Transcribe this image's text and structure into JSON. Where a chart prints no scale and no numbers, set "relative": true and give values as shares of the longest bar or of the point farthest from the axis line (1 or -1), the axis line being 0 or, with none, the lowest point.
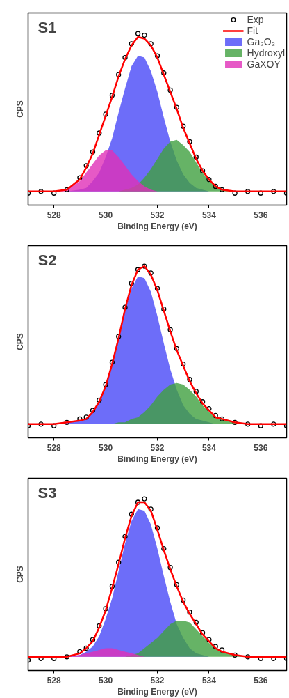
{
  "chart_data": [
    {
      "type": "area",
      "title": "S1",
      "xlabel": "Binding Energy (eV)",
      "ylabel": "CPS",
      "relative": true,
      "xlim": [
        527,
        537
      ],
      "xticks": [
        528,
        530,
        532,
        534,
        536
      ],
      "grid": false,
      "legend": "top right",
      "x": [
        527,
        527.5,
        528,
        528.5,
        529,
        529.25,
        529.5,
        529.75,
        530,
        530.25,
        530.5,
        530.75,
        531,
        531.25,
        531.5,
        531.75,
        532,
        532.25,
        532.5,
        532.75,
        533,
        533.25,
        533.5,
        533.75,
        534,
        534.25,
        534.5,
        535,
        535.5,
        536,
        536.5,
        537
      ],
      "series": [
        {
          "name": "Ga₂O₃",
          "color": "#4848f8",
          "values": [
            0.08,
            0.08,
            0.08,
            0.08,
            0.09,
            0.1,
            0.14,
            0.19,
            0.28,
            0.39,
            0.54,
            0.68,
            0.81,
            0.87,
            0.86,
            0.78,
            0.66,
            0.51,
            0.37,
            0.26,
            0.18,
            0.13,
            0.1,
            0.09,
            0.08,
            0.08,
            0.08,
            0.08,
            0.08,
            0.08,
            0.08,
            0.08
          ]
        },
        {
          "name": "Hydroxyl",
          "color": "#40a040",
          "values": [
            0.08,
            0.08,
            0.08,
            0.08,
            0.08,
            0.08,
            0.08,
            0.08,
            0.08,
            0.08,
            0.08,
            0.09,
            0.1,
            0.12,
            0.16,
            0.21,
            0.27,
            0.33,
            0.37,
            0.38,
            0.35,
            0.31,
            0.25,
            0.19,
            0.14,
            0.11,
            0.09,
            0.08,
            0.08,
            0.08,
            0.08,
            0.08
          ]
        },
        {
          "name": "GaXOY",
          "color": "#e030b8",
          "values": [
            0.08,
            0.08,
            0.08,
            0.09,
            0.14,
            0.19,
            0.24,
            0.29,
            0.32,
            0.32,
            0.28,
            0.23,
            0.18,
            0.14,
            0.11,
            0.09,
            0.08,
            0.08,
            0.08,
            0.08,
            0.08,
            0.08,
            0.08,
            0.08,
            0.08,
            0.08,
            0.08,
            0.08,
            0.08,
            0.08,
            0.08,
            0.08
          ]
        },
        {
          "name": "Exp",
          "type": "scatter",
          "color": "#000000",
          "marker": "circle",
          "values": [
            0.07,
            0.08,
            0.07,
            0.09,
            0.16,
            0.23,
            0.31,
            0.42,
            0.53,
            0.64,
            0.76,
            0.86,
            0.94,
            1.0,
            0.99,
            0.94,
            0.87,
            0.77,
            0.67,
            0.57,
            0.46,
            0.37,
            0.28,
            0.2,
            0.15,
            0.11,
            0.09,
            0.07,
            0.08,
            0.07,
            0.08,
            0.07
          ]
        },
        {
          "name": "Fit",
          "type": "line",
          "color": "#ff0000",
          "line_style": "solid",
          "values": [
            0.08,
            0.08,
            0.08,
            0.09,
            0.15,
            0.22,
            0.3,
            0.41,
            0.52,
            0.63,
            0.75,
            0.85,
            0.93,
            0.98,
            0.97,
            0.93,
            0.86,
            0.76,
            0.66,
            0.56,
            0.45,
            0.36,
            0.27,
            0.2,
            0.15,
            0.11,
            0.09,
            0.08,
            0.08,
            0.08,
            0.08,
            0.08
          ]
        }
      ]
    },
    {
      "type": "area",
      "title": "S2",
      "xlabel": "Binding Energy (eV)",
      "ylabel": "CPS",
      "relative": true,
      "xlim": [
        527,
        537
      ],
      "xticks": [
        528,
        530,
        532,
        534,
        536
      ],
      "grid": false,
      "x": [
        527,
        527.5,
        528,
        528.5,
        529,
        529.25,
        529.5,
        529.75,
        530,
        530.25,
        530.5,
        530.75,
        531,
        531.25,
        531.5,
        531.75,
        532,
        532.25,
        532.5,
        532.75,
        533,
        533.25,
        533.5,
        533.75,
        534,
        534.25,
        534.5,
        535,
        535.5,
        536,
        536.5,
        537
      ],
      "series": [
        {
          "color": "#4848f8",
          "values": [
            0.08,
            0.08,
            0.08,
            0.09,
            0.1,
            0.11,
            0.15,
            0.21,
            0.3,
            0.43,
            0.58,
            0.74,
            0.87,
            0.94,
            0.93,
            0.85,
            0.71,
            0.55,
            0.4,
            0.28,
            0.19,
            0.14,
            0.11,
            0.1,
            0.09,
            0.08,
            0.08,
            0.08,
            0.08,
            0.08,
            0.08,
            0.08
          ]
        },
        {
          "color": "#40a040",
          "values": [
            0.08,
            0.08,
            0.08,
            0.08,
            0.08,
            0.08,
            0.08,
            0.08,
            0.08,
            0.08,
            0.09,
            0.09,
            0.11,
            0.12,
            0.15,
            0.19,
            0.24,
            0.28,
            0.31,
            0.32,
            0.31,
            0.28,
            0.24,
            0.19,
            0.15,
            0.12,
            0.11,
            0.09,
            0.08,
            0.08,
            0.08,
            0.08
          ]
        },
        {
          "type": "scatter",
          "color": "#000000",
          "marker": "circle",
          "values": [
            0.07,
            0.08,
            0.07,
            0.09,
            0.11,
            0.12,
            0.16,
            0.22,
            0.31,
            0.44,
            0.59,
            0.76,
            0.9,
            0.98,
            1.0,
            0.96,
            0.87,
            0.75,
            0.63,
            0.52,
            0.43,
            0.34,
            0.27,
            0.21,
            0.17,
            0.13,
            0.11,
            0.09,
            0.08,
            0.07,
            0.08,
            0.07
          ]
        },
        {
          "type": "line",
          "color": "#ff0000",
          "line_style": "solid",
          "values": [
            0.08,
            0.08,
            0.08,
            0.09,
            0.1,
            0.11,
            0.15,
            0.21,
            0.3,
            0.43,
            0.58,
            0.75,
            0.89,
            0.98,
            1.0,
            0.95,
            0.86,
            0.74,
            0.62,
            0.51,
            0.42,
            0.33,
            0.26,
            0.2,
            0.16,
            0.12,
            0.11,
            0.09,
            0.08,
            0.08,
            0.08,
            0.08
          ]
        }
      ]
    },
    {
      "type": "area",
      "title": "S3",
      "xlabel": "Binding Energy (eV)",
      "ylabel": "CPS",
      "relative": true,
      "xlim": [
        527,
        537
      ],
      "xticks": [
        528,
        530,
        532,
        534,
        536
      ],
      "grid": false,
      "x": [
        527,
        527.5,
        528,
        528.5,
        529,
        529.25,
        529.5,
        529.75,
        530,
        530.25,
        530.5,
        530.75,
        531,
        531.25,
        531.5,
        531.75,
        532,
        532.25,
        532.5,
        532.75,
        533,
        533.25,
        533.5,
        533.75,
        534,
        534.25,
        534.5,
        535,
        535.5,
        536,
        536.5,
        537
      ],
      "series": [
        {
          "color": "#4848f8",
          "values": [
            0.08,
            0.08,
            0.08,
            0.08,
            0.09,
            0.11,
            0.14,
            0.2,
            0.3,
            0.42,
            0.58,
            0.74,
            0.87,
            0.94,
            0.93,
            0.85,
            0.71,
            0.55,
            0.4,
            0.27,
            0.19,
            0.13,
            0.1,
            0.09,
            0.08,
            0.08,
            0.08,
            0.08,
            0.08,
            0.08,
            0.08,
            0.08
          ]
        },
        {
          "color": "#40a040",
          "values": [
            0.08,
            0.08,
            0.08,
            0.08,
            0.08,
            0.08,
            0.08,
            0.08,
            0.08,
            0.08,
            0.08,
            0.08,
            0.09,
            0.1,
            0.13,
            0.16,
            0.19,
            0.23,
            0.27,
            0.29,
            0.29,
            0.28,
            0.24,
            0.2,
            0.16,
            0.13,
            0.11,
            0.09,
            0.08,
            0.08,
            0.08,
            0.08
          ]
        },
        {
          "color": "#e030b8",
          "values": [
            0.08,
            0.08,
            0.08,
            0.08,
            0.09,
            0.1,
            0.11,
            0.12,
            0.13,
            0.13,
            0.12,
            0.11,
            0.1,
            0.09,
            0.08,
            0.08,
            0.08,
            0.08,
            0.08,
            0.08,
            0.08,
            0.08,
            0.08,
            0.08,
            0.08,
            0.08,
            0.08,
            0.08,
            0.08,
            0.08,
            0.08,
            0.08
          ]
        },
        {
          "type": "scatter",
          "color": "#000000",
          "marker": "circle",
          "values": [
            0.06,
            0.07,
            0.07,
            0.08,
            0.11,
            0.13,
            0.18,
            0.26,
            0.36,
            0.49,
            0.63,
            0.78,
            0.91,
            0.98,
            1.0,
            0.94,
            0.83,
            0.71,
            0.6,
            0.5,
            0.41,
            0.34,
            0.28,
            0.22,
            0.18,
            0.14,
            0.12,
            0.09,
            0.08,
            0.07,
            0.07,
            0.07
          ]
        },
        {
          "type": "line",
          "color": "#ff0000",
          "line_style": "solid",
          "values": [
            0.08,
            0.08,
            0.08,
            0.08,
            0.1,
            0.13,
            0.17,
            0.25,
            0.35,
            0.48,
            0.62,
            0.77,
            0.9,
            0.98,
            0.98,
            0.93,
            0.82,
            0.7,
            0.59,
            0.49,
            0.4,
            0.33,
            0.27,
            0.21,
            0.17,
            0.13,
            0.11,
            0.09,
            0.08,
            0.08,
            0.08,
            0.08
          ]
        }
      ]
    }
  ]
}
